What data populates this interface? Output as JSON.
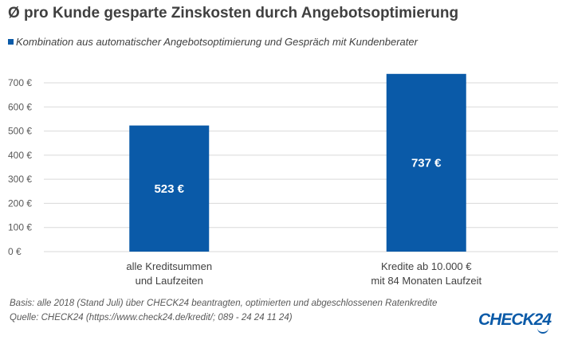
{
  "chart_data": {
    "type": "bar",
    "title": "Ø pro Kunde gesparte Zinskosten durch Angebotsoptimierung",
    "legend": "Kombination aus automatischer Angebotsoptimierung und Gespräch mit Kundenberater",
    "legend_position": "top-left",
    "categories": [
      [
        "alle Kreditsummen",
        "und Laufzeiten"
      ],
      [
        "Kredite ab 10.000 €",
        "mit 84 Monaten Laufzeit"
      ]
    ],
    "values": [
      523,
      737
    ],
    "data_labels": [
      "523 €",
      "737 €"
    ],
    "yticks": [
      0,
      100,
      200,
      300,
      400,
      500,
      600,
      700
    ],
    "ytick_labels": [
      "0 €",
      "100 €",
      "200 €",
      "300 €",
      "400 €",
      "500 €",
      "600 €",
      "700 €"
    ],
    "ylim": [
      0,
      700
    ],
    "grid": true,
    "bar_color": "#0a5aa8"
  },
  "footer": {
    "basis": "Basis: alle 2018 (Stand Juli) über CHECK24 beantragten, optimierten und abgeschlossenen Ratenkredite",
    "source": "Quelle: CHECK24 (https://www.check24.de/kredit/; 089 - 24 24 11 24)",
    "logo": "CHECK24"
  }
}
